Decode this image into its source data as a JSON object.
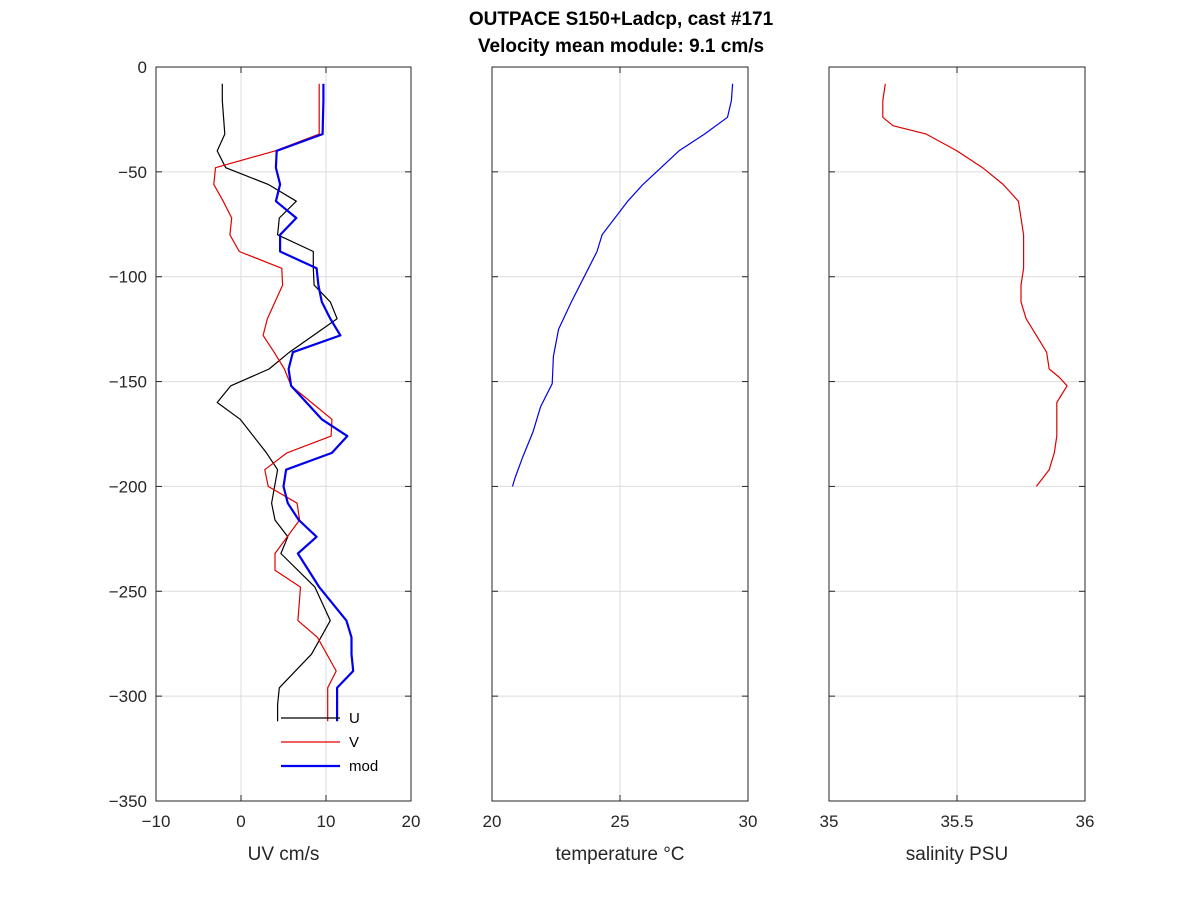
{
  "chart_data": {
    "title": [
      "OUTPACE S150+Ladcp, cast #171",
      "Velocity mean module:  9.1 cm/s"
    ],
    "panels": [
      {
        "type": "line",
        "xlabel": "UV cm/s",
        "xlim": [
          -10,
          20
        ],
        "ylim": [
          -350,
          0
        ],
        "xticks": [
          -10,
          0,
          10,
          20
        ],
        "yticks": [
          0,
          -50,
          -100,
          -150,
          -200,
          -250,
          -300,
          -350
        ],
        "show_yticklabels": true,
        "grid": true,
        "legend": {
          "placement": "bottom-center",
          "entries": [
            "U",
            "V",
            "mod"
          ]
        },
        "series": [
          {
            "name": "U",
            "color": "#000000",
            "width": 1.2,
            "x": [
              -2.2,
              -2.2,
              -1.9,
              -2.8,
              -1.8,
              3.2,
              6.5,
              4.5,
              4.3,
              8.5,
              8.5,
              8.6,
              10.5,
              11.3,
              5.7,
              3.3,
              -1.2,
              -2.8,
              -0.1,
              3.0,
              4.3,
              3.6,
              4.0,
              5.5,
              4.7,
              8.7,
              10.5,
              8.3,
              4.5,
              4.3,
              4.3
            ],
            "y": [
              -8,
              -16,
              -32,
              -40,
              -48,
              -56,
              -64,
              -72,
              -80,
              -88,
              -96,
              -104,
              -112,
              -120,
              -136,
              -144,
              -152,
              -160,
              -168,
              -184,
              -192,
              -208,
              -216,
              -224,
              -232,
              -248,
              -264,
              -280,
              -296,
              -304,
              -312
            ]
          },
          {
            "name": "V",
            "color": "#e00000",
            "width": 1.2,
            "x": [
              9.2,
              9.2,
              9.2,
              4.0,
              -3.0,
              -3.2,
              -2.1,
              -1.1,
              -1.3,
              -0.2,
              4.8,
              4.9,
              3.1,
              2.6,
              3.9,
              5.1,
              5.9,
              8.3,
              10.7,
              10.6,
              5.4,
              2.8,
              3.2,
              6.6,
              6.9,
              4.0,
              4.0,
              7.0,
              6.7,
              9.0,
              11.2,
              10.2,
              10.2,
              10.2
            ],
            "y": [
              -8,
              -16,
              -32,
              -40,
              -48,
              -56,
              -64,
              -72,
              -80,
              -88,
              -96,
              -104,
              -120,
              -128,
              -136,
              -144,
              -152,
              -160,
              -168,
              -176,
              -184,
              -192,
              -200,
              -208,
              -216,
              -232,
              -240,
              -248,
              -264,
              -272,
              -288,
              -296,
              -304,
              -312
            ]
          },
          {
            "name": "mod",
            "color": "#0000ee",
            "width": 2.2,
            "x": [
              9.7,
              9.7,
              9.6,
              4.2,
              4.1,
              4.6,
              4.1,
              6.5,
              4.6,
              4.6,
              8.9,
              9.1,
              9.5,
              10.5,
              11.7,
              6.1,
              5.6,
              5.9,
              9.5,
              12.5,
              10.7,
              5.3,
              5.0,
              5.5,
              6.8,
              8.9,
              6.7,
              9.2,
              12.4,
              13.0,
              13.0,
              13.2,
              11.3,
              11.3
            ],
            "y": [
              -8,
              -16,
              -32,
              -40,
              -48,
              -56,
              -64,
              -72,
              -80,
              -88,
              -96,
              -104,
              -112,
              -120,
              -128,
              -136,
              -144,
              -152,
              -168,
              -176,
              -184,
              -192,
              -200,
              -208,
              -216,
              -224,
              -232,
              -248,
              -264,
              -272,
              -280,
              -288,
              -296,
              -312
            ]
          }
        ]
      },
      {
        "type": "line",
        "xlabel": "temperature °C",
        "xlim": [
          20,
          30
        ],
        "ylim": [
          -350,
          0
        ],
        "xticks": [
          20,
          25,
          30
        ],
        "yticks": [
          0,
          -50,
          -100,
          -150,
          -200,
          -250,
          -300,
          -350
        ],
        "show_yticklabels": false,
        "grid": true,
        "series": [
          {
            "name": "",
            "color": "#0000ee",
            "width": 1.2,
            "x": [
              29.4,
              29.35,
              29.2,
              28.3,
              27.3,
              26.6,
              25.9,
              25.3,
              24.8,
              24.3,
              24.1,
              23.6,
              23.1,
              22.6,
              22.4,
              22.35,
              21.9,
              21.6,
              21.2,
              20.9,
              20.8
            ],
            "y": [
              -8,
              -16,
              -24,
              -32,
              -40,
              -48,
              -56,
              -64,
              -72,
              -80,
              -88,
              -100,
              -112,
              -125,
              -138,
              -151,
              -162,
              -174,
              -186,
              -196,
              -200
            ]
          }
        ]
      },
      {
        "type": "line",
        "xlabel": "salinity PSU",
        "xlim": [
          35,
          36
        ],
        "ylim": [
          -350,
          0
        ],
        "xticks": [
          35,
          35.5,
          36
        ],
        "yticks": [
          0,
          -50,
          -100,
          -150,
          -200,
          -250,
          -300,
          -350
        ],
        "show_yticklabels": false,
        "grid": true,
        "series": [
          {
            "name": "",
            "color": "#e00000",
            "width": 1.2,
            "x": [
              35.22,
              35.21,
              35.21,
              35.25,
              35.38,
              35.5,
              35.6,
              35.68,
              35.74,
              35.76,
              35.76,
              35.75,
              35.75,
              35.77,
              35.81,
              35.85,
              35.86,
              35.9,
              35.93,
              35.89,
              35.89,
              35.89,
              35.88,
              35.86,
              35.81
            ],
            "y": [
              -8,
              -16,
              -24,
              -28,
              -32,
              -40,
              -48,
              -56,
              -64,
              -80,
              -96,
              -104,
              -112,
              -120,
              -128,
              -136,
              -144,
              -148,
              -152,
              -160,
              -168,
              -176,
              -184,
              -192,
              -200
            ]
          }
        ]
      }
    ]
  }
}
